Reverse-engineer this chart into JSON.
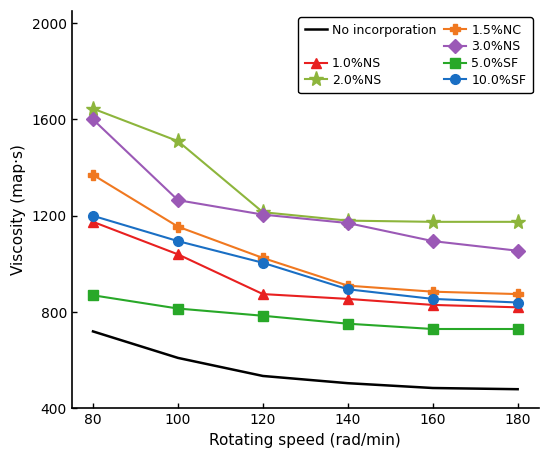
{
  "x": [
    80,
    100,
    120,
    140,
    160,
    180
  ],
  "series": {
    "No incorporation": {
      "y": [
        720,
        610,
        535,
        505,
        485,
        480
      ],
      "color": "#000000",
      "marker": "none",
      "linestyle": "-",
      "linewidth": 1.8
    },
    "1.0%NS": {
      "y": [
        1175,
        1040,
        875,
        855,
        830,
        820
      ],
      "color": "#e82020",
      "marker": "^",
      "linestyle": "-",
      "linewidth": 1.5
    },
    "2.0%NS": {
      "y": [
        1645,
        1510,
        1215,
        1180,
        1175,
        1175
      ],
      "color": "#8db53c",
      "marker": "*",
      "linestyle": "-",
      "linewidth": 1.5
    },
    "1.5%NC": {
      "y": [
        1370,
        1155,
        1025,
        910,
        885,
        875
      ],
      "color": "#f07820",
      "marker": "P",
      "linestyle": "-",
      "linewidth": 1.5
    },
    "3.0%NS": {
      "y": [
        1600,
        1265,
        1205,
        1170,
        1095,
        1055
      ],
      "color": "#9b59b6",
      "marker": "D",
      "linestyle": "-",
      "linewidth": 1.5
    },
    "5.0%SF": {
      "y": [
        870,
        815,
        785,
        752,
        730,
        730
      ],
      "color": "#28a828",
      "marker": "s",
      "linestyle": "-",
      "linewidth": 1.5
    },
    "10.0%SF": {
      "y": [
        1200,
        1095,
        1005,
        895,
        855,
        840
      ],
      "color": "#1a6fc4",
      "marker": "o",
      "linestyle": "-",
      "linewidth": 1.5
    }
  },
  "xlabel": "Rotating speed (rad/min)",
  "ylabel": "Viscosity (map·s)",
  "xlim": [
    75,
    185
  ],
  "ylim": [
    400,
    2050
  ],
  "yticks": [
    400,
    800,
    1200,
    1600,
    2000
  ],
  "xticks": [
    80,
    100,
    120,
    140,
    160,
    180
  ],
  "legend_order": [
    "No incorporation",
    "1.0%NS",
    "2.0%NS",
    "1.5%NC",
    "3.0%NS",
    "5.0%SF",
    "10.0%SF"
  ],
  "marker_size": 7,
  "marker_size_star": 11,
  "background_color": "#ffffff"
}
